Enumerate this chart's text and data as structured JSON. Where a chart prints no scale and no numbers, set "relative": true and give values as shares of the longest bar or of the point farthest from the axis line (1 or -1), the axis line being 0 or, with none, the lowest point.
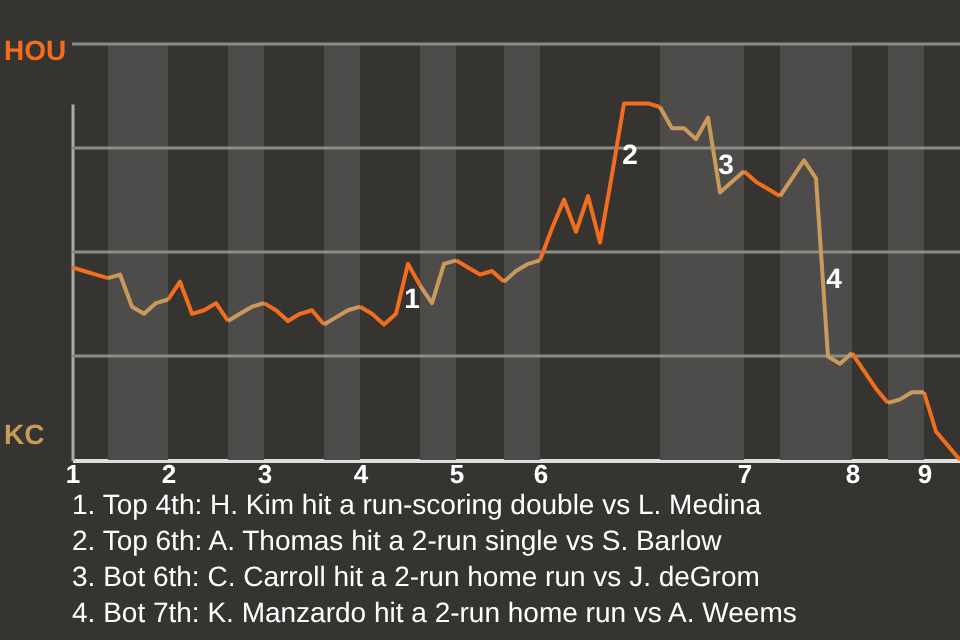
{
  "chart_data": {
    "type": "line",
    "relative": true,
    "categories": [
      "1",
      null,
      null,
      null,
      null,
      null,
      null,
      null,
      "2",
      null,
      null,
      null,
      null,
      null,
      null,
      null,
      "3",
      null,
      null,
      null,
      null,
      null,
      null,
      null,
      "4",
      null,
      null,
      null,
      null,
      null,
      null,
      null,
      "5",
      null,
      null,
      null,
      null,
      null,
      null,
      "6",
      null,
      null,
      null,
      null,
      null,
      null,
      null,
      null,
      null,
      null,
      null,
      null,
      null,
      null,
      null,
      null,
      "7",
      null,
      null,
      null,
      null,
      null,
      null,
      null,
      null,
      "8",
      null,
      null,
      null,
      null,
      null,
      "9",
      null,
      null,
      null
    ],
    "grid": "y",
    "series": [
      {
        "name": "HOU",
        "color": "#f26d1d",
        "values": [
          0.54,
          0.53,
          0.52,
          0.51,
          null,
          null,
          null,
          null,
          0.45,
          0.5,
          0.41,
          0.42,
          0.44,
          0.39,
          null,
          null,
          0.44,
          0.42,
          0.39,
          0.41,
          0.42,
          0.38,
          null,
          null,
          0.43,
          0.41,
          0.38,
          0.41,
          0.55,
          0.49,
          null,
          null,
          0.56,
          0.54,
          0.52,
          0.53,
          0.5,
          null,
          null,
          0.56,
          0.65,
          0.73,
          0.64,
          0.74,
          0.61,
          0.8,
          1.0,
          1.0,
          1,
          0.99,
          null,
          null,
          null,
          null,
          null,
          null,
          0.81,
          0.78,
          0.76,
          0.74,
          null,
          null,
          null,
          null,
          null,
          0.3,
          0.25,
          0.2,
          0.16,
          null,
          null,
          0.19,
          0.08,
          0.04,
          0
        ]
      },
      {
        "name": "KC",
        "color": "#c99a5b",
        "values": [
          null,
          null,
          null,
          0.51,
          0.52,
          0.43,
          0.41,
          0.44,
          0.45,
          null,
          null,
          null,
          null,
          0.39,
          0.41,
          0.43,
          0.44,
          null,
          null,
          null,
          null,
          0.38,
          0.4,
          0.42,
          0.43,
          null,
          null,
          null,
          null,
          0.49,
          0.44,
          0.55,
          0.56,
          null,
          null,
          null,
          0.5,
          0.53,
          0.55,
          0.56,
          null,
          null,
          null,
          null,
          null,
          null,
          null,
          null,
          null,
          0.99,
          0.93,
          0.93,
          0.9,
          0.96,
          0.75,
          0.78,
          0.81,
          null,
          null,
          0.74,
          0.79,
          0.84,
          0.79,
          0.29,
          0.27,
          0.3,
          null,
          null,
          0.16,
          0.17,
          0.19,
          0.19,
          null,
          null,
          null
        ]
      }
    ],
    "annotations": [
      "1",
      "2",
      "3",
      "4",
      "1. Top 4th: H. Kim hit a run-scoring double vs L. Medina",
      "2. Top 6th: A. Thomas hit a 2-run single vs S. Barlow",
      "3. Bot 6th: C. Carroll hit a 2-run home run vs J. deGrom",
      "4. Bot 7th: K. Manzardo hit a 2-run home run vs A. Weems"
    ]
  }
}
